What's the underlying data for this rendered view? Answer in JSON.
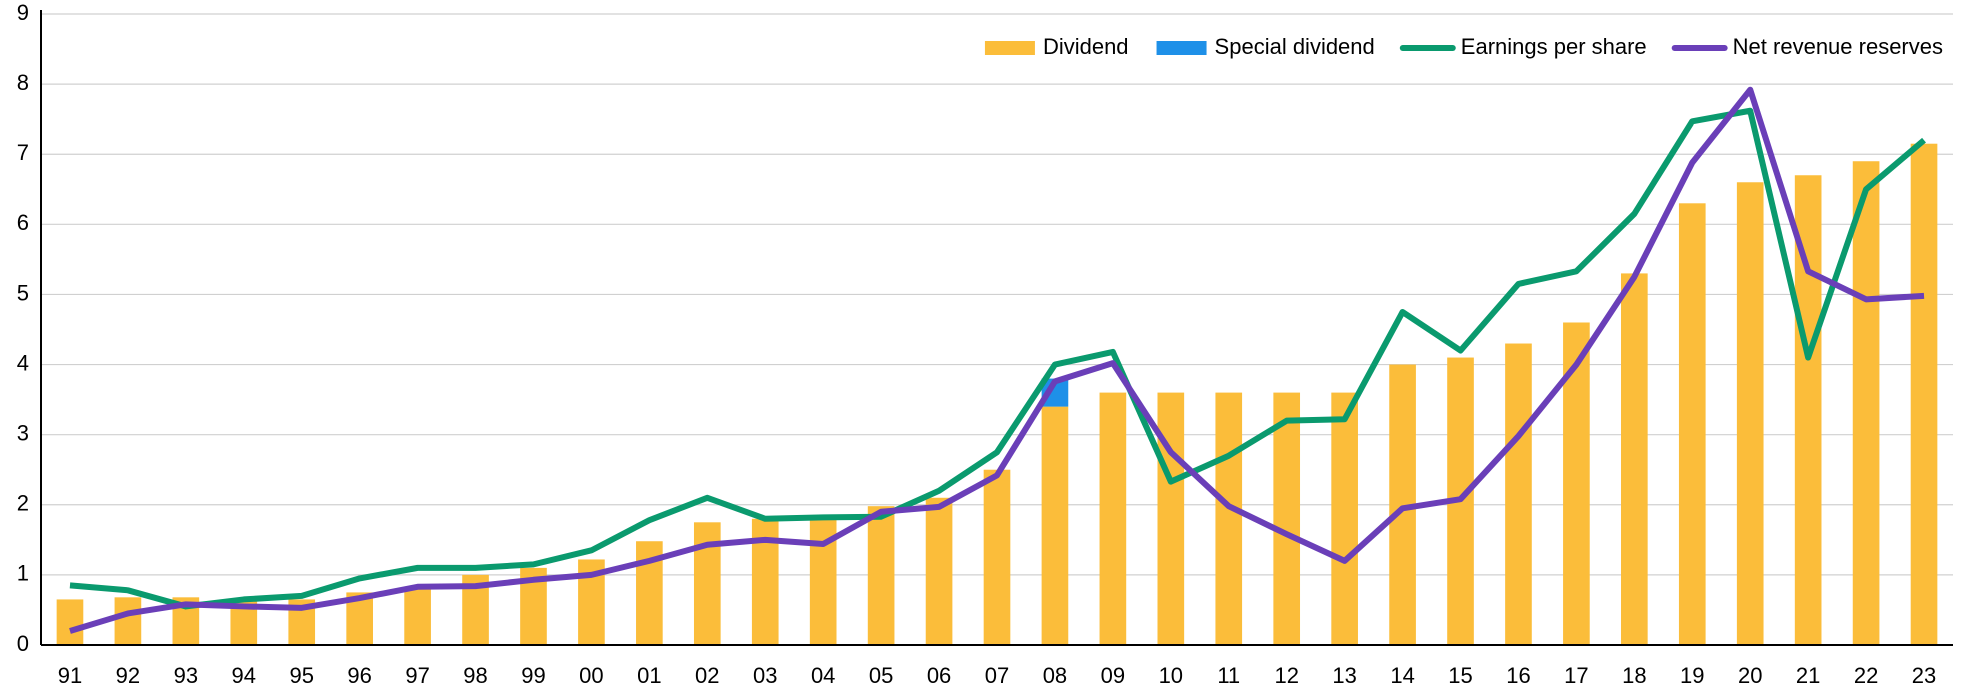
{
  "chart_data": {
    "type": "bar-line",
    "categories": [
      "91",
      "92",
      "93",
      "94",
      "95",
      "96",
      "97",
      "98",
      "99",
      "00",
      "01",
      "02",
      "03",
      "04",
      "05",
      "06",
      "07",
      "08",
      "09",
      "10",
      "11",
      "12",
      "13",
      "14",
      "15",
      "16",
      "17",
      "18",
      "19",
      "20",
      "21",
      "22",
      "23"
    ],
    "series": [
      {
        "name": "Dividend",
        "type": "bar",
        "color": "#fbbd3a",
        "values": [
          0.65,
          0.68,
          0.68,
          0.62,
          0.65,
          0.75,
          0.8,
          1.0,
          1.1,
          1.22,
          1.48,
          1.75,
          1.8,
          1.85,
          1.98,
          2.1,
          2.5,
          3.4,
          3.6,
          3.6,
          3.6,
          3.6,
          3.6,
          4.0,
          4.1,
          4.3,
          4.6,
          5.3,
          6.3,
          6.6,
          6.7,
          6.9,
          7.15
        ]
      },
      {
        "name": "Special dividend",
        "type": "bar",
        "stack": true,
        "color": "#1e90e8",
        "values": [
          null,
          null,
          null,
          null,
          null,
          null,
          null,
          null,
          null,
          null,
          null,
          null,
          null,
          null,
          null,
          null,
          null,
          0.4,
          null,
          null,
          null,
          null,
          null,
          null,
          null,
          null,
          null,
          null,
          null,
          null,
          null,
          null,
          null
        ]
      },
      {
        "name": "Earnings per share",
        "type": "line",
        "color": "#0a9a6e",
        "values": [
          0.85,
          0.78,
          0.55,
          0.65,
          0.7,
          0.95,
          1.1,
          1.1,
          1.15,
          1.35,
          1.78,
          2.1,
          1.8,
          1.82,
          1.83,
          2.2,
          2.75,
          4.0,
          4.18,
          2.33,
          2.7,
          3.2,
          3.22,
          4.75,
          4.2,
          5.15,
          5.33,
          6.15,
          7.47,
          7.62,
          4.1,
          6.5,
          7.2
        ]
      },
      {
        "name": "Net revenue reserves",
        "type": "line",
        "color": "#6a3fb8",
        "values": [
          0.2,
          0.45,
          0.58,
          0.55,
          0.53,
          0.67,
          0.83,
          0.84,
          0.93,
          1.0,
          1.2,
          1.43,
          1.5,
          1.44,
          1.9,
          1.97,
          2.42,
          3.76,
          4.02,
          2.75,
          1.98,
          1.58,
          1.2,
          1.95,
          2.08,
          2.98,
          4.0,
          5.25,
          6.88,
          7.92,
          5.33,
          4.93,
          4.98
        ]
      }
    ],
    "ylim": [
      0,
      9
    ],
    "yticks": [
      0,
      1,
      2,
      3,
      4,
      5,
      6,
      7,
      8,
      9
    ],
    "grid": true,
    "legend": "top-right"
  }
}
